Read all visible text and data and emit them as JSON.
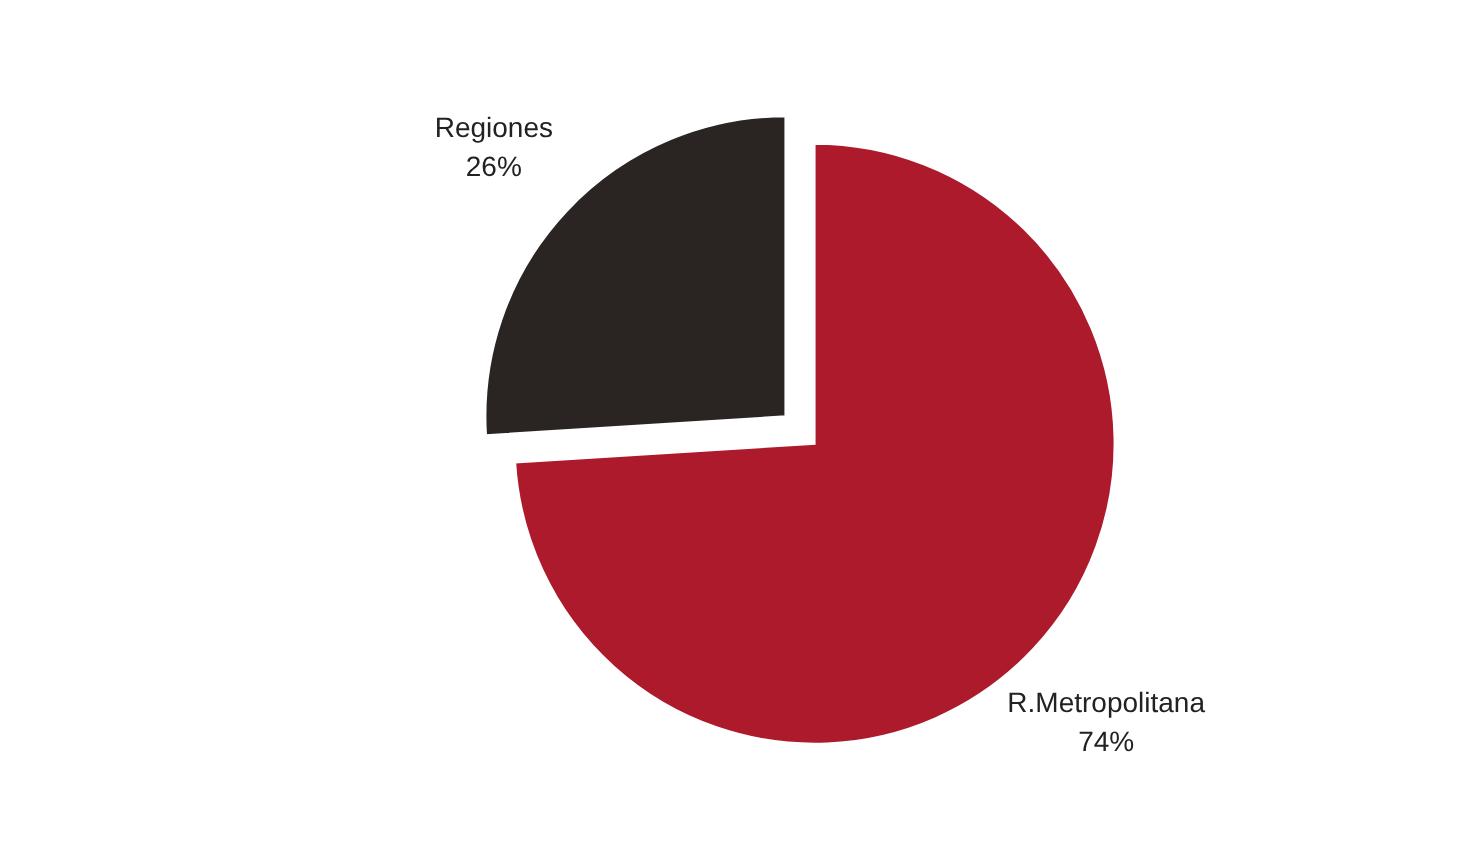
{
  "chart_data": {
    "type": "pie",
    "categories": [
      "R.Metropolitana",
      "Regiones"
    ],
    "values": [
      74,
      26
    ],
    "colors": [
      "#ad1a2c",
      "#2a2523"
    ],
    "value_labels": [
      "74%",
      "26%"
    ]
  }
}
